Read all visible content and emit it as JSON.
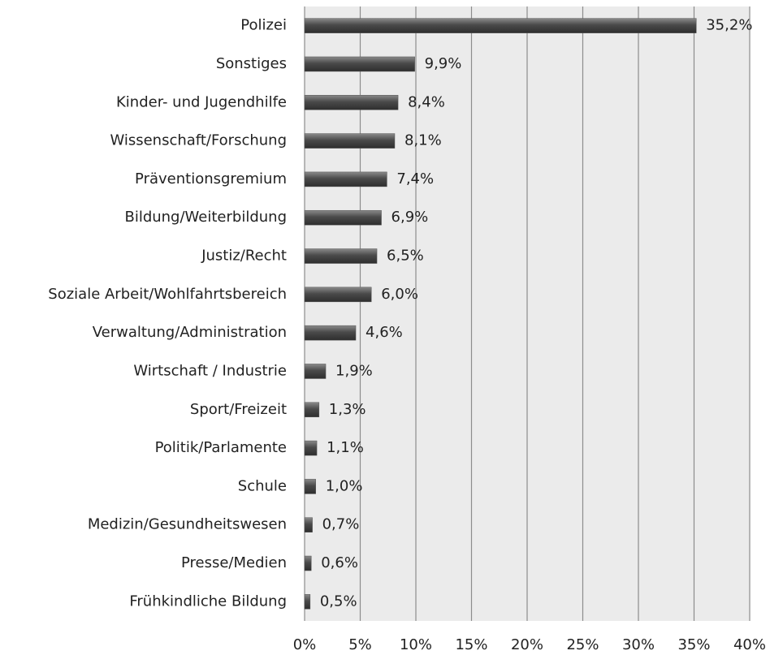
{
  "chart_data": {
    "type": "hbar",
    "categories": [
      "Polizei",
      "Sonstiges",
      "Kinder- und Jugendhilfe",
      "Wissenschaft/Forschung",
      "Präventionsgremium",
      "Bildung/Weiterbildung",
      "Justiz/Recht",
      "Soziale Arbeit/Wohlfahrtsbereich",
      "Verwaltung/Administration",
      "Wirtschaft / Industrie",
      "Sport/Freizeit",
      "Politik/Parlamente",
      "Schule",
      "Medizin/Gesundheitswesen",
      "Presse/Medien",
      "Frühkindliche Bildung"
    ],
    "values": [
      35.2,
      9.9,
      8.4,
      8.1,
      7.4,
      6.9,
      6.5,
      6.0,
      4.6,
      1.9,
      1.3,
      1.1,
      1.0,
      0.7,
      0.6,
      0.5
    ],
    "value_labels": [
      "35,2%",
      "9,9%",
      "8,4%",
      "8,1%",
      "7,4%",
      "6,9%",
      "6,5%",
      "6,0%",
      "4,6%",
      "1,9%",
      "1,3%",
      "1,1%",
      "1,0%",
      "0,7%",
      "0,6%",
      "0,5%"
    ],
    "color": "#555555",
    "xlim": [
      0,
      40
    ],
    "xticks": [
      {
        "value": 0,
        "label": "0%"
      },
      {
        "value": 5,
        "label": "5%"
      },
      {
        "value": 10,
        "label": "10%"
      },
      {
        "value": 15,
        "label": "15%"
      },
      {
        "value": 20,
        "label": "20%"
      },
      {
        "value": 25,
        "label": "25%"
      },
      {
        "value": 30,
        "label": "30%"
      },
      {
        "value": 35,
        "label": "35%"
      },
      {
        "value": 40,
        "label": "40%"
      }
    ],
    "grid": true
  }
}
